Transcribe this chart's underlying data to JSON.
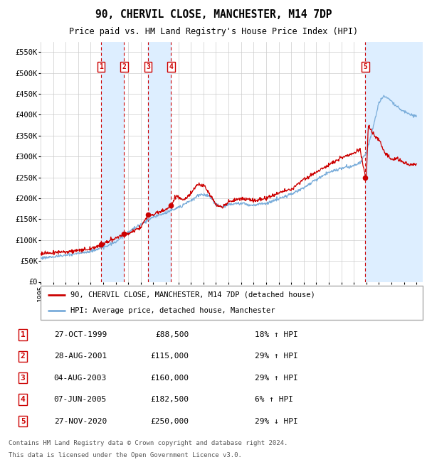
{
  "title": "90, CHERVIL CLOSE, MANCHESTER, M14 7DP",
  "subtitle": "Price paid vs. HM Land Registry's House Price Index (HPI)",
  "footer_line1": "Contains HM Land Registry data © Crown copyright and database right 2024.",
  "footer_line2": "This data is licensed under the Open Government Licence v3.0.",
  "legend_red": "90, CHERVIL CLOSE, MANCHESTER, M14 7DP (detached house)",
  "legend_blue": "HPI: Average price, detached house, Manchester",
  "transactions": [
    {
      "id": 1,
      "date": "1999-10-27",
      "price": 88500,
      "pct": "18%",
      "dir": "↑"
    },
    {
      "id": 2,
      "date": "2001-08-28",
      "price": 115000,
      "pct": "29%",
      "dir": "↑"
    },
    {
      "id": 3,
      "date": "2003-08-04",
      "price": 160000,
      "pct": "29%",
      "dir": "↑"
    },
    {
      "id": 4,
      "date": "2005-06-07",
      "price": 182500,
      "pct": "6%",
      "dir": "↑"
    },
    {
      "id": 5,
      "date": "2020-11-27",
      "price": 250000,
      "pct": "29%",
      "dir": "↓"
    }
  ],
  "ylim": [
    0,
    575000
  ],
  "yticks": [
    0,
    50000,
    100000,
    150000,
    200000,
    250000,
    300000,
    350000,
    400000,
    450000,
    500000,
    550000
  ],
  "ytick_labels": [
    "£0",
    "£50K",
    "£100K",
    "£150K",
    "£200K",
    "£250K",
    "£300K",
    "£350K",
    "£400K",
    "£450K",
    "£500K",
    "£550K"
  ],
  "color_red": "#cc0000",
  "color_blue": "#7aadda",
  "color_bg_highlight": "#ddeeff",
  "color_grid": "#cccccc",
  "tx_dates_x": [
    1999.833,
    2001.667,
    2003.583,
    2005.417,
    2020.917
  ],
  "sale_prices": [
    88500,
    115000,
    160000,
    182500,
    250000
  ],
  "date_labels": [
    "27-OCT-1999",
    "28-AUG-2001",
    "04-AUG-2003",
    "07-JUN-2005",
    "27-NOV-2020"
  ],
  "price_labels": [
    "£88,500",
    "£115,000",
    "£160,000",
    "£182,500",
    "£250,000"
  ],
  "pct_labels": [
    "18% ↑ HPI",
    "29% ↑ HPI",
    "29% ↑ HPI",
    "6% ↑ HPI",
    "29% ↓ HPI"
  ],
  "xmin": 1995.0,
  "xmax": 2025.5
}
